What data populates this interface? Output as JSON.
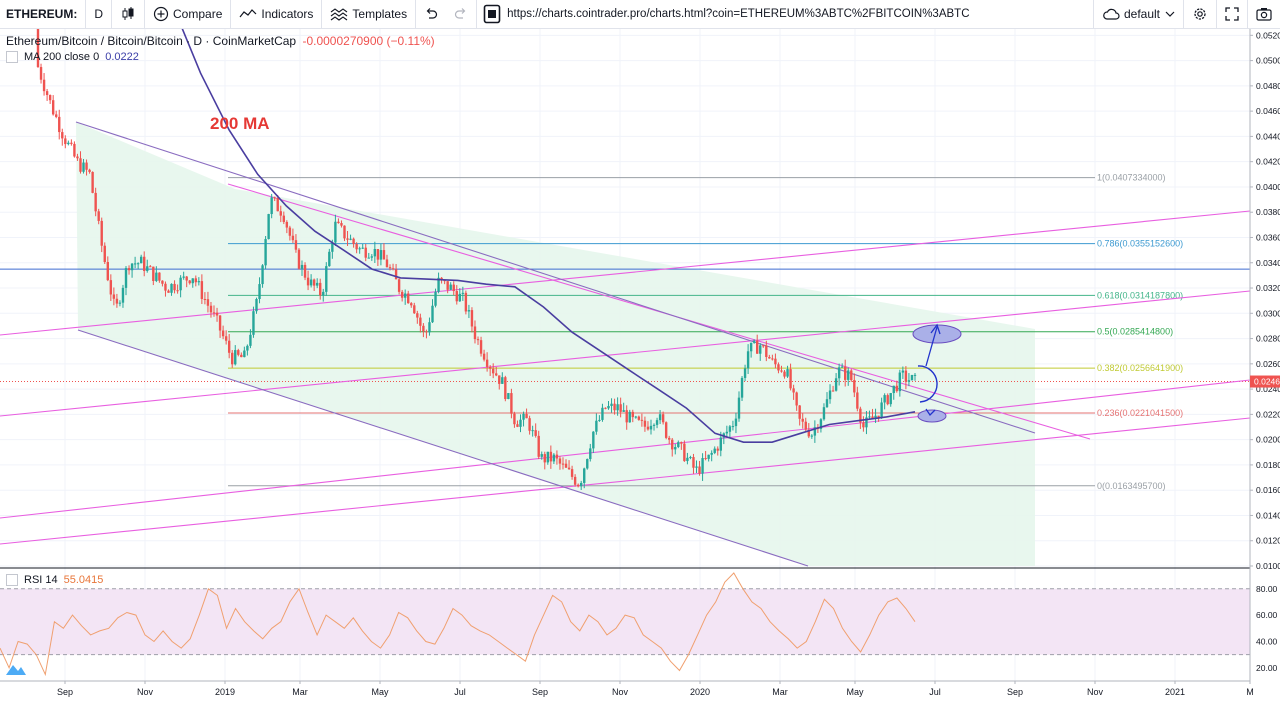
{
  "toolbar": {
    "symbol": "ETHEREUM:",
    "interval": "D",
    "compare": "Compare",
    "indicators": "Indicators",
    "templates": "Templates",
    "url": "https://charts.cointrader.pro/charts.html?coin=ETHEREUM%3ABTC%2FBITCOIN%3ABTC",
    "layout": "default"
  },
  "legend": {
    "title": "Ethereum/Bitcoin / Bitcoin/Bitcoin · D · CoinMarketCap",
    "change": "-0.0000270900 (−0.11%)",
    "ma_label": "MA 200 close 0",
    "ma_value": "0.0222",
    "rsi_label": "RSI 14",
    "rsi_value": "55.0415"
  },
  "colors": {
    "up": "#26a69a",
    "down": "#ef5350",
    "ma": "#4a3ea0",
    "channel": "#8a6cc0",
    "trend": "#e85fe0",
    "rsi": "#f0a070",
    "fib_zone": "#e6f6ec"
  },
  "chart_data": {
    "type": "candlestick",
    "title": "Ethereum/Bitcoin / Bitcoin/Bitcoin · D · CoinMarketCap",
    "x_ticks": [
      "Sep",
      "Nov",
      "2019",
      "Mar",
      "May",
      "Jul",
      "Sep",
      "Nov",
      "2020",
      "Mar",
      "May",
      "Jul",
      "Sep",
      "Nov",
      "2021",
      "M"
    ],
    "y_ticks": [
      0.052,
      0.05,
      0.048,
      0.046,
      0.044,
      0.042,
      0.04,
      0.038,
      0.036,
      0.034,
      0.032,
      0.03,
      0.028,
      0.026,
      0.024,
      0.022,
      0.02,
      0.018,
      0.016,
      0.014,
      0.012,
      0.01
    ],
    "ylim": [
      0.01,
      0.0525
    ],
    "last_price_label": "0.0246",
    "annotation": "200 MA",
    "fib_levels": [
      {
        "ratio": "1",
        "value": 0.0407334,
        "label": "1(0.0407334000)",
        "color": "#9aa0a6"
      },
      {
        "ratio": "0.786",
        "value": 0.0355152,
        "label": "0.786(0.0355152600)",
        "color": "#3d9ad1"
      },
      {
        "ratio": "0.618",
        "value": 0.0314187,
        "label": "0.618(0.0314187800)",
        "color": "#43b58a"
      },
      {
        "ratio": "0.5",
        "value": 0.0285414,
        "label": "0.5(0.0285414800)",
        "color": "#34a853"
      },
      {
        "ratio": "0.382",
        "value": 0.0256641,
        "label": "0.382(0.0256641900)",
        "color": "#c0ca33"
      },
      {
        "ratio": "0.236",
        "value": 0.0221041,
        "label": "0.236(0.0221041500)",
        "color": "#e57373"
      },
      {
        "ratio": "0",
        "value": 0.0163495,
        "label": "0(0.0163495700)",
        "color": "#9aa0a6"
      }
    ],
    "price_path": [
      [
        0.0525,
        0.0495
      ],
      [
        0.046,
        0.0465
      ],
      [
        0.047,
        0.044
      ],
      [
        0.043,
        0.042
      ],
      [
        0.0415,
        0.041
      ],
      [
        0.0405,
        0.035
      ],
      [
        0.0345,
        0.03
      ],
      [
        0.0315,
        0.034
      ],
      [
        0.0365,
        0.034
      ],
      [
        0.035,
        0.033
      ],
      [
        0.0325,
        0.032
      ],
      [
        0.0325,
        0.0325
      ],
      [
        0.034,
        0.033
      ],
      [
        0.0335,
        0.031
      ],
      [
        0.0305,
        0.029
      ],
      [
        0.0285,
        0.0265
      ],
      [
        0.026,
        0.0265
      ],
      [
        0.027,
        0.031
      ],
      [
        0.035,
        0.039
      ],
      [
        0.0405,
        0.038
      ],
      [
        0.0365,
        0.0345
      ],
      [
        0.034,
        0.0325
      ],
      [
        0.032,
        0.0315
      ],
      [
        0.034,
        0.037
      ],
      [
        0.038,
        0.036
      ],
      [
        0.0355,
        0.035
      ],
      [
        0.0345,
        0.035
      ],
      [
        0.0345,
        0.034
      ],
      [
        0.033,
        0.032
      ],
      [
        0.0315,
        0.031
      ],
      [
        0.0305,
        0.028
      ],
      [
        0.027,
        0.0325
      ],
      [
        0.033,
        0.032
      ],
      [
        0.032,
        0.031
      ],
      [
        0.0295,
        0.028
      ],
      [
        0.027,
        0.026
      ],
      [
        0.0255,
        0.0245
      ],
      [
        0.0225,
        0.0215
      ],
      [
        0.0225,
        0.0215
      ],
      [
        0.0205,
        0.0185
      ],
      [
        0.018,
        0.0185
      ],
      [
        0.0185,
        0.0175
      ],
      [
        0.017,
        0.0165
      ],
      [
        0.019,
        0.0205
      ],
      [
        0.0215,
        0.0225
      ],
      [
        0.022,
        0.0225
      ],
      [
        0.0225,
        0.0215
      ],
      [
        0.0205,
        0.021
      ],
      [
        0.0215,
        0.022
      ],
      [
        0.0205,
        0.02
      ],
      [
        0.0195,
        0.019
      ],
      [
        0.018,
        0.0175
      ],
      [
        0.018,
        0.0185
      ],
      [
        0.019,
        0.02
      ],
      [
        0.02,
        0.0215
      ],
      [
        0.0235,
        0.027
      ],
      [
        0.028,
        0.0275
      ],
      [
        0.027,
        0.026
      ],
      [
        0.027,
        0.0255
      ],
      [
        0.0235,
        0.0215
      ],
      [
        0.021,
        0.0205
      ],
      [
        0.0215,
        0.0225
      ],
      [
        0.024,
        0.0255
      ],
      [
        0.0255,
        0.025
      ],
      [
        0.0225,
        0.021
      ],
      [
        0.021,
        0.022
      ],
      [
        0.0225,
        0.0235
      ],
      [
        0.0245,
        0.025
      ],
      [
        0.0248,
        0.0246
      ]
    ],
    "ma_path": [
      [
        null,
        0.0545
      ],
      [
        null,
        0.049
      ],
      [
        null,
        0.0445
      ],
      [
        null,
        0.041
      ],
      [
        null,
        0.0385
      ],
      [
        null,
        0.0365
      ],
      [
        null,
        0.035
      ],
      [
        null,
        0.0335
      ],
      [
        null,
        0.0328
      ],
      [
        null,
        0.0327
      ],
      [
        null,
        0.0326
      ],
      [
        null,
        0.0323
      ],
      [
        null,
        0.0321
      ],
      [
        null,
        0.0305
      ],
      [
        null,
        0.0285
      ],
      [
        null,
        0.027
      ],
      [
        null,
        0.0255
      ],
      [
        null,
        0.024
      ],
      [
        null,
        0.0225
      ],
      [
        null,
        0.0205
      ],
      [
        null,
        0.0198
      ],
      [
        null,
        0.0198
      ],
      [
        null,
        0.0205
      ],
      [
        null,
        0.0212
      ],
      [
        null,
        0.0215
      ],
      [
        null,
        0.0218
      ],
      [
        null,
        0.0222
      ]
    ],
    "rsi": {
      "label": "RSI 14",
      "value": 55.0415,
      "levels": [
        80,
        60,
        40,
        20
      ],
      "upper_band": 80,
      "lower_band": 30,
      "ylim": [
        10,
        95
      ],
      "path": [
        35,
        20,
        40,
        38,
        30,
        15,
        55,
        50,
        60,
        52,
        45,
        48,
        50,
        58,
        62,
        60,
        45,
        40,
        48,
        40,
        35,
        42,
        60,
        80,
        75,
        50,
        65,
        55,
        48,
        42,
        50,
        55,
        70,
        80,
        62,
        45,
        60,
        55,
        50,
        58,
        48,
        40,
        35,
        45,
        62,
        58,
        48,
        40,
        38,
        50,
        65,
        60,
        52,
        48,
        45,
        40,
        35,
        30,
        25,
        45,
        60,
        75,
        70,
        55,
        48,
        60,
        55,
        45,
        50,
        60,
        58,
        45,
        40,
        35,
        25,
        18,
        30,
        45,
        60,
        70,
        85,
        92,
        80,
        70,
        65,
        55,
        48,
        42,
        35,
        40,
        55,
        72,
        65,
        50,
        40,
        32,
        45,
        60,
        70,
        73,
        65,
        55
      ]
    }
  }
}
